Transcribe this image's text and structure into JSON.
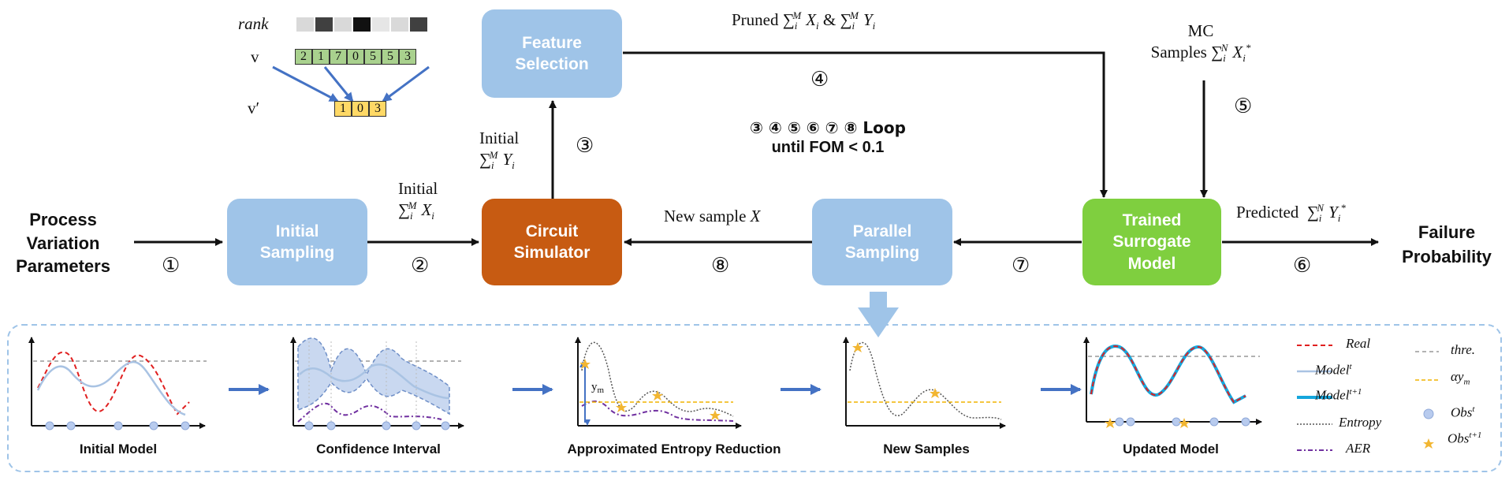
{
  "boxes": {
    "feature_selection": "Feature Selection",
    "initial_sampling": "Initial Sampling",
    "circuit_simulator": "Circuit Simulator",
    "parallel_sampling": "Parallel Sampling",
    "trained_surrogate": "Trained Surrogate Model"
  },
  "inputs_outputs": {
    "process_variation": "Process Variation Parameters",
    "failure_probability": "Failure Probability"
  },
  "steps": [
    "①",
    "②",
    "③",
    "④",
    "⑤",
    "⑥",
    "⑦",
    "⑧"
  ],
  "labels": {
    "rank": "rank",
    "v": "v",
    "v_prime": "v′",
    "pruned_prefix": "Pruned ",
    "pruned_x": "∑",
    "initial_y_1": "Initial",
    "initial_x_1": "Initial",
    "mc_1": "MC",
    "mc_2": "Samples",
    "new_sample": "New sample ",
    "new_sample_var": "X",
    "predicted": "Predicted",
    "loop_line1": "③ ④ ⑤ ⑥ ⑦ ⑧ Loop",
    "loop_line2": "until FOM < 0.1"
  },
  "vectors": {
    "v": [
      "2",
      "1",
      "7",
      "0",
      "5",
      "5",
      "3"
    ],
    "v_prime": [
      "1",
      "0",
      "3"
    ],
    "rank_colors": [
      "#d9d9d9",
      "#404040",
      "#d9d9d9",
      "#111111",
      "#e6e6e6",
      "#d9d9d9",
      "#404040"
    ]
  },
  "panels": {
    "captions": [
      "Initial Model",
      "Confidence Interval",
      "Approximated Entropy Reduction",
      "New Samples",
      "Updated Model"
    ],
    "ym_label": "y"
  },
  "legend": {
    "real": "Real",
    "model_t": "Model",
    "model_t1": "Model",
    "entropy": "Entropy",
    "aer": "AER",
    "thre": "thre.",
    "alpha_ym": "αy",
    "obs_t": "Obs",
    "obs_t1": "Obs"
  },
  "colors": {
    "light_blue": "#9fc4e8",
    "orange": "#c75b12",
    "green": "#7fcf3f",
    "real_line": "#e02020",
    "model_t_line": "#a9c3e3",
    "model_t1_line": "#15a6dc",
    "aer_line": "#7030a0",
    "threshold_line": "#999999",
    "alpha_line": "#f0b400",
    "arrow_blue": "#4472c4"
  }
}
